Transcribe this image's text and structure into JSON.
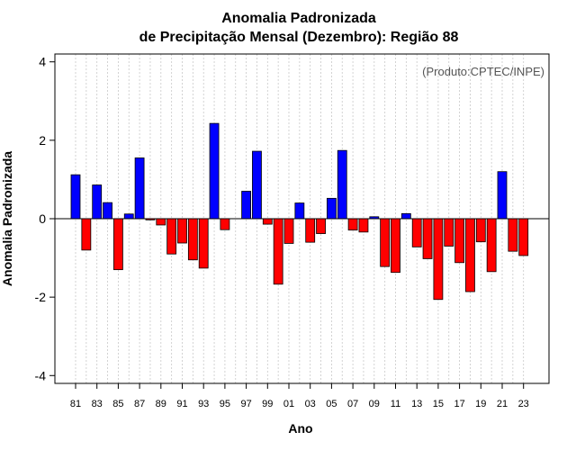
{
  "chart_data": {
    "type": "bar",
    "title": [
      "Anomalia Padronizada",
      "de Precipitação Mensal (Dezembro): Região 88"
    ],
    "xlabel": "Ano",
    "ylabel": "Anomalia Padronizada",
    "credit": "(Produto:CPTEC/INPE)",
    "ylim": [
      -4.2,
      4.2
    ],
    "yticks": [
      -4,
      -2,
      0,
      2,
      4
    ],
    "categories": [
      "81",
      "82",
      "83",
      "84",
      "85",
      "86",
      "87",
      "88",
      "89",
      "90",
      "91",
      "92",
      "93",
      "94",
      "95",
      "96",
      "97",
      "98",
      "99",
      "00",
      "01",
      "02",
      "03",
      "04",
      "05",
      "06",
      "07",
      "08",
      "09",
      "10",
      "11",
      "12",
      "13",
      "14",
      "15",
      "16",
      "17",
      "18",
      "19",
      "20",
      "21",
      "22",
      "23"
    ],
    "xtick_labels": [
      "81",
      "83",
      "85",
      "87",
      "89",
      "91",
      "93",
      "95",
      "97",
      "99",
      "01",
      "03",
      "05",
      "07",
      "09",
      "11",
      "13",
      "15",
      "17",
      "19",
      "21",
      "23"
    ],
    "values": [
      1.12,
      -0.8,
      0.86,
      0.41,
      -1.3,
      0.12,
      1.55,
      -0.03,
      -0.16,
      -0.9,
      -0.62,
      -1.05,
      -1.26,
      2.43,
      -0.28,
      0.0,
      0.7,
      1.72,
      -0.14,
      -1.67,
      -0.63,
      0.4,
      -0.6,
      -0.38,
      0.52,
      1.74,
      -0.29,
      -0.34,
      0.05,
      -1.22,
      -1.37,
      0.13,
      -0.72,
      -1.02,
      -2.06,
      -0.7,
      -1.12,
      -1.86,
      -0.59,
      -1.35,
      1.2,
      -0.83,
      -0.94
    ],
    "colors": {
      "positive": "#0000ff",
      "negative": "#ff0000",
      "grid": "#c8c8c8"
    },
    "grid": true
  }
}
